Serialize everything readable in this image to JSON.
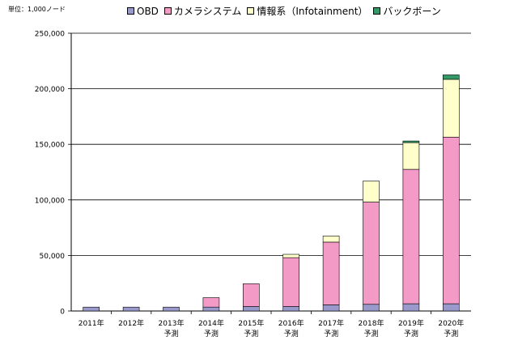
{
  "chart_data": {
    "type": "bar",
    "stacked": true,
    "unit_label": "単位：1,000ノード",
    "categories": [
      "2011年",
      "2012年",
      "2013年\n予測",
      "2014年\n予測",
      "2015年\n予測",
      "2016年\n予測",
      "2017年\n予測",
      "2018年\n予測",
      "2019年\n予測",
      "2020年\n予測"
    ],
    "series": [
      {
        "name": "OBD",
        "color": "#9999cc",
        "values": [
          3500,
          3500,
          3500,
          3500,
          4000,
          4000,
          5500,
          6000,
          6500,
          6500
        ]
      },
      {
        "name": "カメラシステム",
        "color": "#f39ac6",
        "values": [
          0,
          0,
          0,
          8500,
          20500,
          44000,
          56500,
          92000,
          121000,
          150000
        ]
      },
      {
        "name": "情報系（Infotainment）",
        "color": "#ffffcc",
        "values": [
          0,
          0,
          0,
          0,
          0,
          3000,
          5500,
          19000,
          24000,
          52000
        ]
      },
      {
        "name": "バックボーン",
        "color": "#339966",
        "values": [
          0,
          0,
          0,
          0,
          0,
          0,
          0,
          0,
          1500,
          4000
        ]
      }
    ],
    "ylim": [
      0,
      250000
    ],
    "yticks": [
      "0",
      "50,000",
      "100,000",
      "150,000",
      "200,000",
      "250,000"
    ],
    "ytick_values": [
      0,
      50000,
      100000,
      150000,
      200000,
      250000
    ],
    "grid": true,
    "legend_position": "top"
  }
}
